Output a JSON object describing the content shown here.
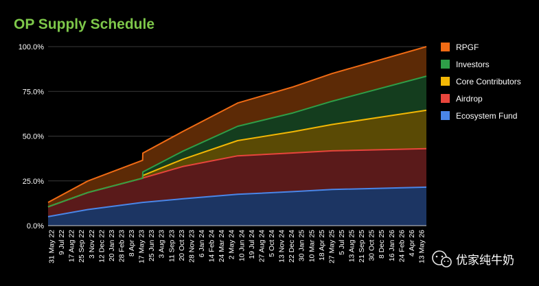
{
  "chart_data": {
    "type": "area",
    "stacked": true,
    "title": "OP Supply Schedule",
    "title_color": "#7ec84a",
    "background": "#000000",
    "ylim": [
      0,
      100
    ],
    "yticks": [
      0,
      25,
      50,
      75,
      100
    ],
    "ytick_labels": [
      "0.0%",
      "25.0%",
      "50.0%",
      "75.0%",
      "100.0%"
    ],
    "grid": true,
    "legend_position": "right",
    "x_range": [
      "2022-05-31",
      "2026-05-31"
    ],
    "xtick_labels": [
      "31 May 22",
      "9 Jul 22",
      "17 Aug 22",
      "25 Sep 22",
      "3 Nov 22",
      "12 Dec 22",
      "20 Jan 23",
      "28 Feb 23",
      "8 Apr 23",
      "17 May 23",
      "25 Jun 23",
      "3 Aug 23",
      "11 Sep 23",
      "20 Oct 23",
      "28 Nov 23",
      "6 Jan 24",
      "14 Feb 24",
      "24 Mar 24",
      "2 May 24",
      "10 Jun 24",
      "19 Jul 24",
      "27 Aug 24",
      "5 Oct 24",
      "13 Nov 24",
      "22 Dec 24",
      "30 Jan 25",
      "10 Mar 25",
      "18 Apr 25",
      "27 May 25",
      "5 Jul 25",
      "13 Aug 25",
      "21 Sep 25",
      "30 Oct 25",
      "8 Dec 25",
      "16 Jan 26",
      "24 Feb 26",
      "4 Apr 26",
      "13 May 26"
    ],
    "x": [
      "2022-05-31",
      "2022-11-01",
      "2023-05-31",
      "2023-06-01",
      "2023-11-01",
      "2024-06-01",
      "2025-01-01",
      "2025-06-01",
      "2026-05-31"
    ],
    "series": [
      {
        "name": "Ecosystem Fund",
        "color": "#4a86e8",
        "fill": "#1c3563",
        "values": [
          5,
          9,
          13,
          13,
          15,
          17.5,
          19,
          20.2,
          21.5
        ]
      },
      {
        "name": "Airdrop",
        "color": "#e8453c",
        "fill": "#5a1a1a",
        "values": [
          10.5,
          18.5,
          26.5,
          26.6,
          33,
          39,
          40.6,
          41.8,
          43
        ]
      },
      {
        "name": "Core Contributors",
        "color": "#f2b705",
        "fill": "#5a4a05",
        "values": [
          10.5,
          18.5,
          26.5,
          28,
          37,
          47.5,
          52.5,
          56.5,
          64.5
        ]
      },
      {
        "name": "Investors",
        "color": "#2e9e48",
        "fill": "#143d1e",
        "values": [
          10.5,
          18.5,
          26.5,
          30,
          41.5,
          55.5,
          63,
          69.5,
          83.5
        ]
      },
      {
        "name": "RPGF",
        "color": "#f06b14",
        "fill": "#5c2a06",
        "values": [
          13,
          25,
          36.5,
          40.5,
          52.5,
          68.5,
          77.5,
          85,
          100
        ]
      }
    ]
  },
  "watermark": {
    "text": "优家纯牛奶"
  }
}
